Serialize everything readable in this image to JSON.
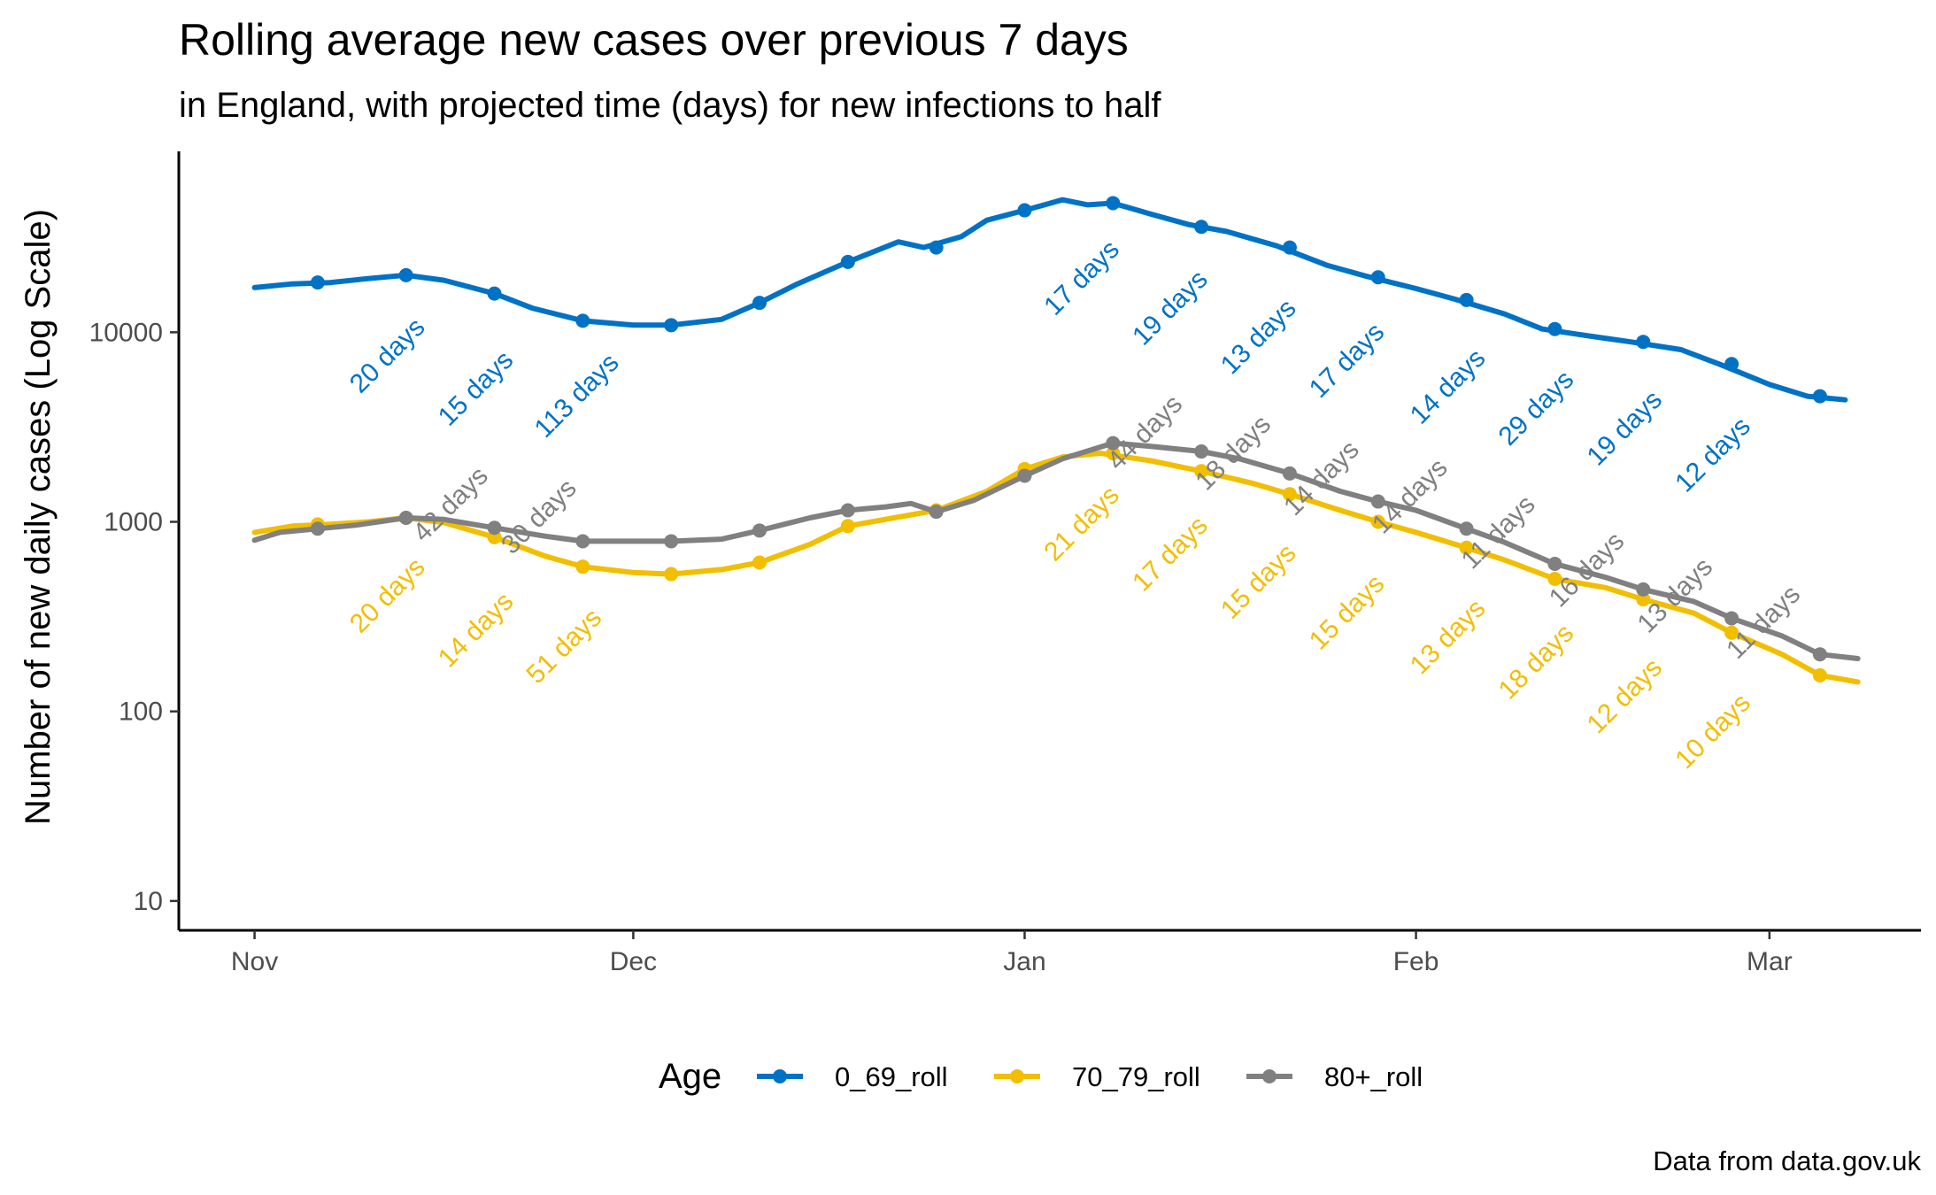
{
  "chart_data": {
    "type": "line",
    "title": "Rolling average new cases over previous 7 days",
    "subtitle": "in England, with projected time (days) for new infections to half",
    "ylabel": "Number of new daily cases (Log Scale)",
    "xlabel": "",
    "y_scale": "log",
    "ylim": [
      7,
      90000
    ],
    "xlim": [
      "2020-10-26",
      "2021-03-13"
    ],
    "y_ticks": [
      10,
      100,
      1000,
      10000
    ],
    "y_tick_labels": [
      "10",
      "100",
      "1000",
      "10000"
    ],
    "x_ticks": [
      "2020-11-01",
      "2020-12-01",
      "2021-01-01",
      "2021-02-01",
      "2021-03-01"
    ],
    "x_tick_labels": [
      "Nov",
      "Dec",
      "Jan",
      "Feb",
      "Mar"
    ],
    "grid": false,
    "legend": {
      "title": "Age",
      "position": "bottom"
    },
    "caption": "Data from data.gov.uk",
    "series": [
      {
        "name": "0_69_roll",
        "color": "#0072C6",
        "points": [
          [
            "2020-11-01",
            17200
          ],
          [
            "2020-11-04",
            18000
          ],
          [
            "2020-11-07",
            18300
          ],
          [
            "2020-11-10",
            19200
          ],
          [
            "2020-11-13",
            20000
          ],
          [
            "2020-11-16",
            18800
          ],
          [
            "2020-11-20",
            16000
          ],
          [
            "2020-11-23",
            13400
          ],
          [
            "2020-11-27",
            11500
          ],
          [
            "2020-12-01",
            10900
          ],
          [
            "2020-12-04",
            10900
          ],
          [
            "2020-12-08",
            11700
          ],
          [
            "2020-12-11",
            14300
          ],
          [
            "2020-12-14",
            18000
          ],
          [
            "2020-12-18",
            23500
          ],
          [
            "2020-12-22",
            30000
          ],
          [
            "2020-12-24",
            28000
          ],
          [
            "2020-12-27",
            32000
          ],
          [
            "2020-12-29",
            39000
          ],
          [
            "2021-01-01",
            44000
          ],
          [
            "2021-01-04",
            50000
          ],
          [
            "2021-01-06",
            47000
          ],
          [
            "2021-01-08",
            48000
          ],
          [
            "2021-01-11",
            42000
          ],
          [
            "2021-01-14",
            37000
          ],
          [
            "2021-01-17",
            34000
          ],
          [
            "2021-01-21",
            28500
          ],
          [
            "2021-01-25",
            22500
          ],
          [
            "2021-01-28",
            19800
          ],
          [
            "2021-02-01",
            17000
          ],
          [
            "2021-02-04",
            15000
          ],
          [
            "2021-02-08",
            12500
          ],
          [
            "2021-02-11",
            10400
          ],
          [
            "2021-02-15",
            9500
          ],
          [
            "2021-02-18",
            8900
          ],
          [
            "2021-02-22",
            8100
          ],
          [
            "2021-02-25",
            6800
          ],
          [
            "2021-03-01",
            5300
          ],
          [
            "2021-03-04",
            4600
          ],
          [
            "2021-03-07",
            4400
          ]
        ],
        "markers": [
          [
            "2020-11-06",
            18300
          ],
          [
            "2020-11-13",
            20000
          ],
          [
            "2020-11-20",
            16000
          ],
          [
            "2020-11-27",
            11500
          ],
          [
            "2020-12-04",
            10900
          ],
          [
            "2020-12-11",
            14300
          ],
          [
            "2020-12-18",
            23500
          ],
          [
            "2020-12-25",
            28000
          ],
          [
            "2021-01-01",
            44000
          ],
          [
            "2021-01-08",
            48000
          ],
          [
            "2021-01-15",
            36000
          ],
          [
            "2021-01-22",
            28000
          ],
          [
            "2021-01-29",
            19500
          ],
          [
            "2021-02-05",
            14800
          ],
          [
            "2021-02-12",
            10400
          ],
          [
            "2021-02-19",
            8900
          ],
          [
            "2021-02-26",
            6800
          ],
          [
            "2021-03-05",
            4600
          ]
        ],
        "annotations": [
          {
            "date": "2020-11-12",
            "value": 7000,
            "text": "20 days"
          },
          {
            "date": "2020-11-19",
            "value": 4700,
            "text": "15 days"
          },
          {
            "date": "2020-11-27",
            "value": 4300,
            "text": "113 days"
          },
          {
            "date": "2021-01-06",
            "value": 18000,
            "text": "17 days"
          },
          {
            "date": "2021-01-13",
            "value": 12500,
            "text": "19 days"
          },
          {
            "date": "2021-01-20",
            "value": 8800,
            "text": "13 days"
          },
          {
            "date": "2021-01-27",
            "value": 6600,
            "text": "17 days"
          },
          {
            "date": "2021-02-04",
            "value": 4800,
            "text": "14 days"
          },
          {
            "date": "2021-02-11",
            "value": 3700,
            "text": "29 days"
          },
          {
            "date": "2021-02-18",
            "value": 2900,
            "text": "19 days"
          },
          {
            "date": "2021-02-25",
            "value": 2100,
            "text": "12 days"
          }
        ]
      },
      {
        "name": "70_79_roll",
        "color": "#F2BE00",
        "points": [
          [
            "2020-11-01",
            880
          ],
          [
            "2020-11-04",
            950
          ],
          [
            "2020-11-07",
            970
          ],
          [
            "2020-11-10",
            1000
          ],
          [
            "2020-11-13",
            1050
          ],
          [
            "2020-11-16",
            990
          ],
          [
            "2020-11-20",
            830
          ],
          [
            "2020-11-24",
            660
          ],
          [
            "2020-11-27",
            580
          ],
          [
            "2020-12-01",
            540
          ],
          [
            "2020-12-04",
            530
          ],
          [
            "2020-12-08",
            560
          ],
          [
            "2020-12-11",
            610
          ],
          [
            "2020-12-15",
            760
          ],
          [
            "2020-12-18",
            950
          ],
          [
            "2020-12-22",
            1060
          ],
          [
            "2020-12-25",
            1150
          ],
          [
            "2020-12-29",
            1450
          ],
          [
            "2021-01-01",
            1900
          ],
          [
            "2021-01-04",
            2200
          ],
          [
            "2021-01-07",
            2300
          ],
          [
            "2021-01-11",
            2100
          ],
          [
            "2021-01-15",
            1850
          ],
          [
            "2021-01-19",
            1600
          ],
          [
            "2021-01-22",
            1400
          ],
          [
            "2021-01-26",
            1150
          ],
          [
            "2021-01-29",
            1000
          ],
          [
            "2021-02-01",
            880
          ],
          [
            "2021-02-05",
            730
          ],
          [
            "2021-02-08",
            630
          ],
          [
            "2021-02-12",
            500
          ],
          [
            "2021-02-16",
            450
          ],
          [
            "2021-02-19",
            390
          ],
          [
            "2021-02-23",
            330
          ],
          [
            "2021-02-26",
            260
          ],
          [
            "2021-03-02",
            200
          ],
          [
            "2021-03-05",
            155
          ],
          [
            "2021-03-08",
            143
          ]
        ],
        "markers": [
          [
            "2020-11-06",
            970
          ],
          [
            "2020-11-13",
            1050
          ],
          [
            "2020-11-20",
            830
          ],
          [
            "2020-11-27",
            580
          ],
          [
            "2020-12-04",
            530
          ],
          [
            "2020-12-11",
            610
          ],
          [
            "2020-12-18",
            950
          ],
          [
            "2020-12-25",
            1150
          ],
          [
            "2021-01-01",
            1900
          ],
          [
            "2021-01-08",
            2300
          ],
          [
            "2021-01-15",
            1850
          ],
          [
            "2021-01-22",
            1400
          ],
          [
            "2021-01-29",
            1000
          ],
          [
            "2021-02-05",
            730
          ],
          [
            "2021-02-12",
            500
          ],
          [
            "2021-02-19",
            390
          ],
          [
            "2021-02-26",
            260
          ],
          [
            "2021-03-05",
            155
          ]
        ],
        "annotations": [
          {
            "date": "2020-11-12",
            "value": 380,
            "text": "20 days"
          },
          {
            "date": "2020-11-19",
            "value": 250,
            "text": "14 days"
          },
          {
            "date": "2020-11-26",
            "value": 205,
            "text": "51 days"
          },
          {
            "date": "2021-01-06",
            "value": 910,
            "text": "21 days"
          },
          {
            "date": "2021-01-13",
            "value": 630,
            "text": "17 days"
          },
          {
            "date": "2021-01-20",
            "value": 450,
            "text": "15 days"
          },
          {
            "date": "2021-01-27",
            "value": 310,
            "text": "15 days"
          },
          {
            "date": "2021-02-04",
            "value": 230,
            "text": "13 days"
          },
          {
            "date": "2021-02-11",
            "value": 170,
            "text": "18 days"
          },
          {
            "date": "2021-02-18",
            "value": 112,
            "text": "12 days"
          },
          {
            "date": "2021-02-25",
            "value": 73,
            "text": "10 days"
          }
        ]
      },
      {
        "name": "80+_roll",
        "color": "#808080",
        "points": [
          [
            "2020-11-01",
            800
          ],
          [
            "2020-11-03",
            880
          ],
          [
            "2020-11-06",
            920
          ],
          [
            "2020-11-09",
            960
          ],
          [
            "2020-11-13",
            1050
          ],
          [
            "2020-11-16",
            1030
          ],
          [
            "2020-11-20",
            930
          ],
          [
            "2020-11-24",
            840
          ],
          [
            "2020-11-27",
            790
          ],
          [
            "2020-12-01",
            790
          ],
          [
            "2020-12-04",
            790
          ],
          [
            "2020-12-08",
            810
          ],
          [
            "2020-12-11",
            900
          ],
          [
            "2020-12-15",
            1050
          ],
          [
            "2020-12-18",
            1150
          ],
          [
            "2020-12-21",
            1200
          ],
          [
            "2020-12-23",
            1250
          ],
          [
            "2020-12-25",
            1130
          ],
          [
            "2020-12-28",
            1300
          ],
          [
            "2021-01-01",
            1750
          ],
          [
            "2021-01-04",
            2150
          ],
          [
            "2021-01-08",
            2600
          ],
          [
            "2021-01-11",
            2500
          ],
          [
            "2021-01-15",
            2350
          ],
          [
            "2021-01-18",
            2150
          ],
          [
            "2021-01-22",
            1800
          ],
          [
            "2021-01-26",
            1450
          ],
          [
            "2021-01-29",
            1280
          ],
          [
            "2021-02-01",
            1150
          ],
          [
            "2021-02-05",
            920
          ],
          [
            "2021-02-08",
            780
          ],
          [
            "2021-02-12",
            600
          ],
          [
            "2021-02-16",
            510
          ],
          [
            "2021-02-19",
            440
          ],
          [
            "2021-02-23",
            380
          ],
          [
            "2021-02-26",
            310
          ],
          [
            "2021-03-02",
            250
          ],
          [
            "2021-03-05",
            200
          ],
          [
            "2021-03-08",
            190
          ]
        ],
        "markers": [
          [
            "2020-11-06",
            920
          ],
          [
            "2020-11-13",
            1050
          ],
          [
            "2020-11-20",
            930
          ],
          [
            "2020-11-27",
            790
          ],
          [
            "2020-12-04",
            790
          ],
          [
            "2020-12-11",
            900
          ],
          [
            "2020-12-18",
            1150
          ],
          [
            "2020-12-25",
            1130
          ],
          [
            "2021-01-01",
            1750
          ],
          [
            "2021-01-08",
            2600
          ],
          [
            "2021-01-15",
            2350
          ],
          [
            "2021-01-22",
            1800
          ],
          [
            "2021-01-29",
            1280
          ],
          [
            "2021-02-05",
            920
          ],
          [
            "2021-02-12",
            600
          ],
          [
            "2021-02-19",
            440
          ],
          [
            "2021-02-26",
            310
          ],
          [
            "2021-03-05",
            200
          ]
        ],
        "annotations": [
          {
            "date": "2020-11-17",
            "value": 1150,
            "text": "42 days"
          },
          {
            "date": "2020-11-24",
            "value": 990,
            "text": "30 days"
          },
          {
            "date": "2021-01-11",
            "value": 2750,
            "text": "44 days"
          },
          {
            "date": "2021-01-18",
            "value": 2150,
            "text": "18 days"
          },
          {
            "date": "2021-01-25",
            "value": 1580,
            "text": "14 days"
          },
          {
            "date": "2021-02-01",
            "value": 1270,
            "text": "14 days"
          },
          {
            "date": "2021-02-08",
            "value": 820,
            "text": "11 days"
          },
          {
            "date": "2021-02-15",
            "value": 520,
            "text": "16 days"
          },
          {
            "date": "2021-02-22",
            "value": 380,
            "text": "13 days"
          },
          {
            "date": "2021-03-01",
            "value": 275,
            "text": "11 days"
          }
        ]
      }
    ]
  }
}
